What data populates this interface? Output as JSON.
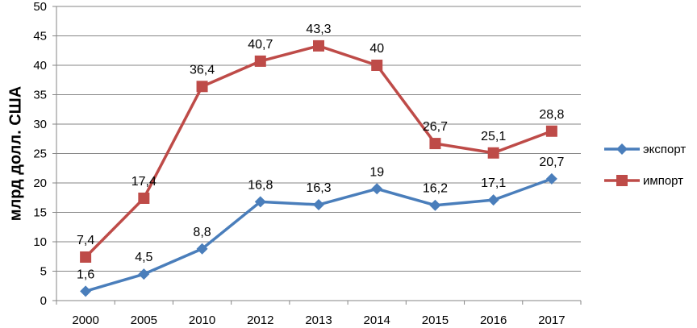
{
  "chart_data": {
    "type": "line",
    "categories": [
      "2000",
      "2005",
      "2010",
      "2012",
      "2013",
      "2014",
      "2015",
      "2016",
      "2017"
    ],
    "ylabel": "млрд долл. США",
    "ylim": [
      0,
      50
    ],
    "yticks": [
      0,
      5,
      10,
      15,
      20,
      25,
      30,
      35,
      40,
      45,
      50
    ],
    "grid": true,
    "legend": "right",
    "series": [
      {
        "name": "экспорт",
        "color": "#4a7ebb",
        "marker": "diamond",
        "values": [
          1.6,
          4.5,
          8.8,
          16.8,
          16.3,
          19,
          16.2,
          17.1,
          20.7
        ],
        "labels": [
          "1,6",
          "4,5",
          "8,8",
          "16,8",
          "16,3",
          "19",
          "16,2",
          "17,1",
          "20,7"
        ]
      },
      {
        "name": "импорт",
        "color": "#be4b48",
        "marker": "square",
        "values": [
          7.4,
          17.4,
          36.4,
          40.7,
          43.3,
          40,
          26.7,
          25.1,
          28.8
        ],
        "labels": [
          "7,4",
          "17,4",
          "36,4",
          "40,7",
          "43,3",
          "40",
          "26,7",
          "25,1",
          "28,8"
        ]
      }
    ]
  }
}
